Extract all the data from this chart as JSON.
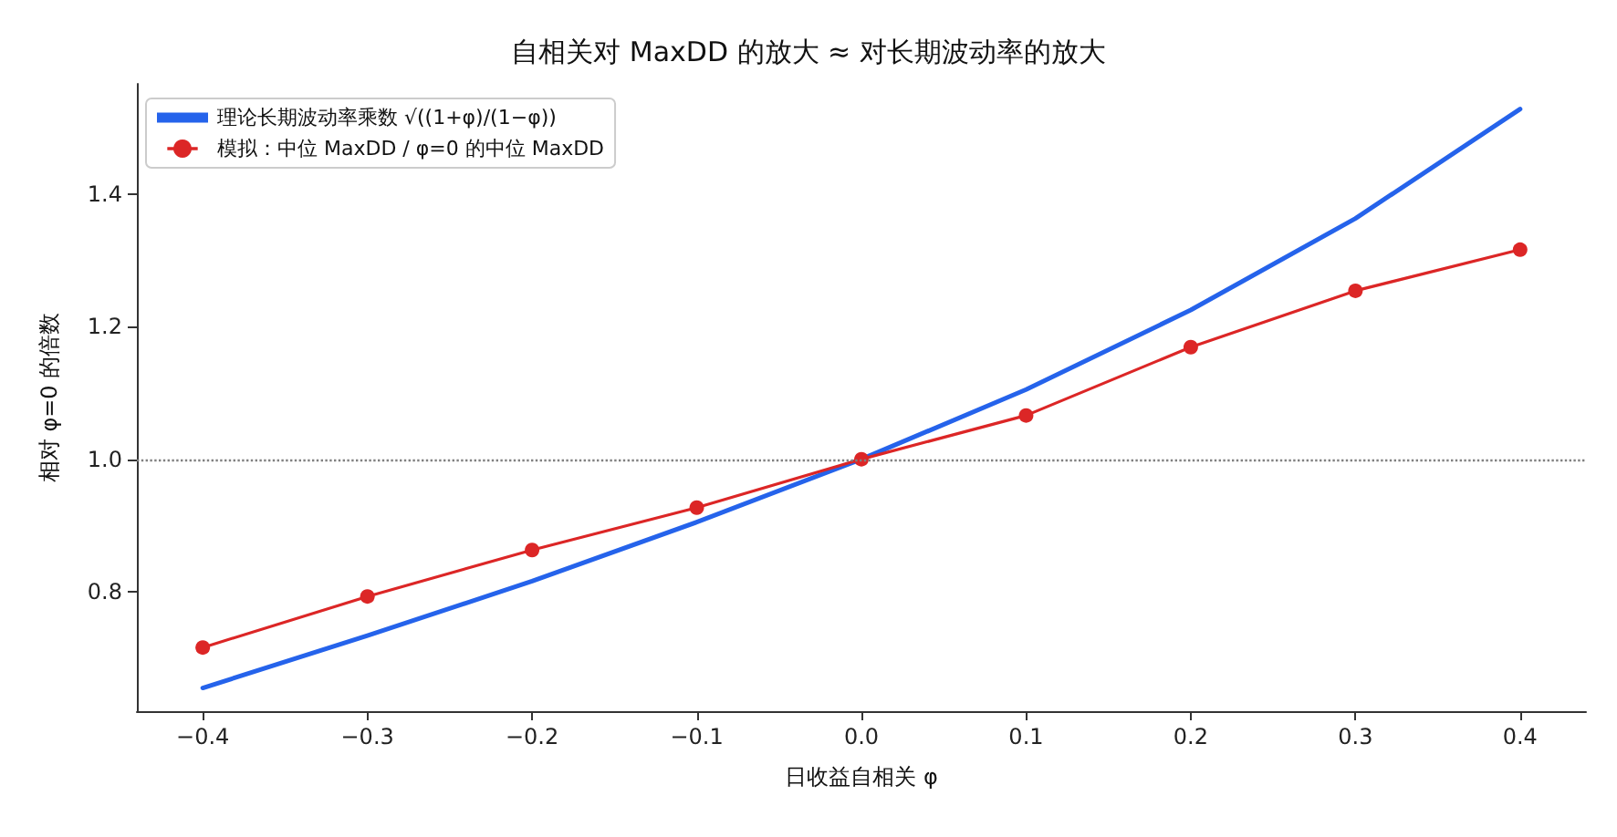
{
  "chart_data": {
    "type": "line",
    "title": "自相关对 MaxDD 的放大 ≈ 对长期波动率的放大",
    "xlabel": "日收益自相关 φ",
    "ylabel": "相对 φ=0 的倍数",
    "x": [
      -0.4,
      -0.3,
      -0.2,
      -0.1,
      0.0,
      0.1,
      0.2,
      0.3,
      0.4
    ],
    "series": [
      {
        "name": "理论长期波动率乘数 √((1+φ)/(1−φ))",
        "color": "#2563eb",
        "marker": "none",
        "values": [
          0.655,
          0.734,
          0.816,
          0.905,
          1.0,
          1.105,
          1.225,
          1.363,
          1.528
        ]
      },
      {
        "name": "模拟：中位 MaxDD / φ=0 的中位 MaxDD",
        "color": "#dc2626",
        "marker": "circle",
        "values": [
          0.716,
          0.793,
          0.863,
          0.927,
          1.0,
          1.066,
          1.169,
          1.254,
          1.316
        ]
      }
    ],
    "xlim": [
      -0.44,
      0.44
    ],
    "xticks": [
      {
        "value": -0.4,
        "label": "−0.4"
      },
      {
        "value": -0.3,
        "label": "−0.3"
      },
      {
        "value": -0.2,
        "label": "−0.2"
      },
      {
        "value": -0.1,
        "label": "−0.1"
      },
      {
        "value": 0.0,
        "label": "0.0"
      },
      {
        "value": 0.1,
        "label": "0.1"
      },
      {
        "value": 0.2,
        "label": "0.2"
      },
      {
        "value": 0.3,
        "label": "0.3"
      },
      {
        "value": 0.4,
        "label": "0.4"
      }
    ],
    "ylim": [
      0.62,
      1.566
    ],
    "yticks": [
      {
        "value": 0.8,
        "label": "0.8"
      },
      {
        "value": 1.0,
        "label": "1.0"
      },
      {
        "value": 1.2,
        "label": "1.2"
      },
      {
        "value": 1.4,
        "label": "1.4"
      }
    ],
    "ref_lines": [
      {
        "axis": "y",
        "value": 1.0,
        "color": "#808080",
        "line_style": "dotted"
      }
    ],
    "grid": false,
    "legend": "top left",
    "line_style": "solid"
  }
}
